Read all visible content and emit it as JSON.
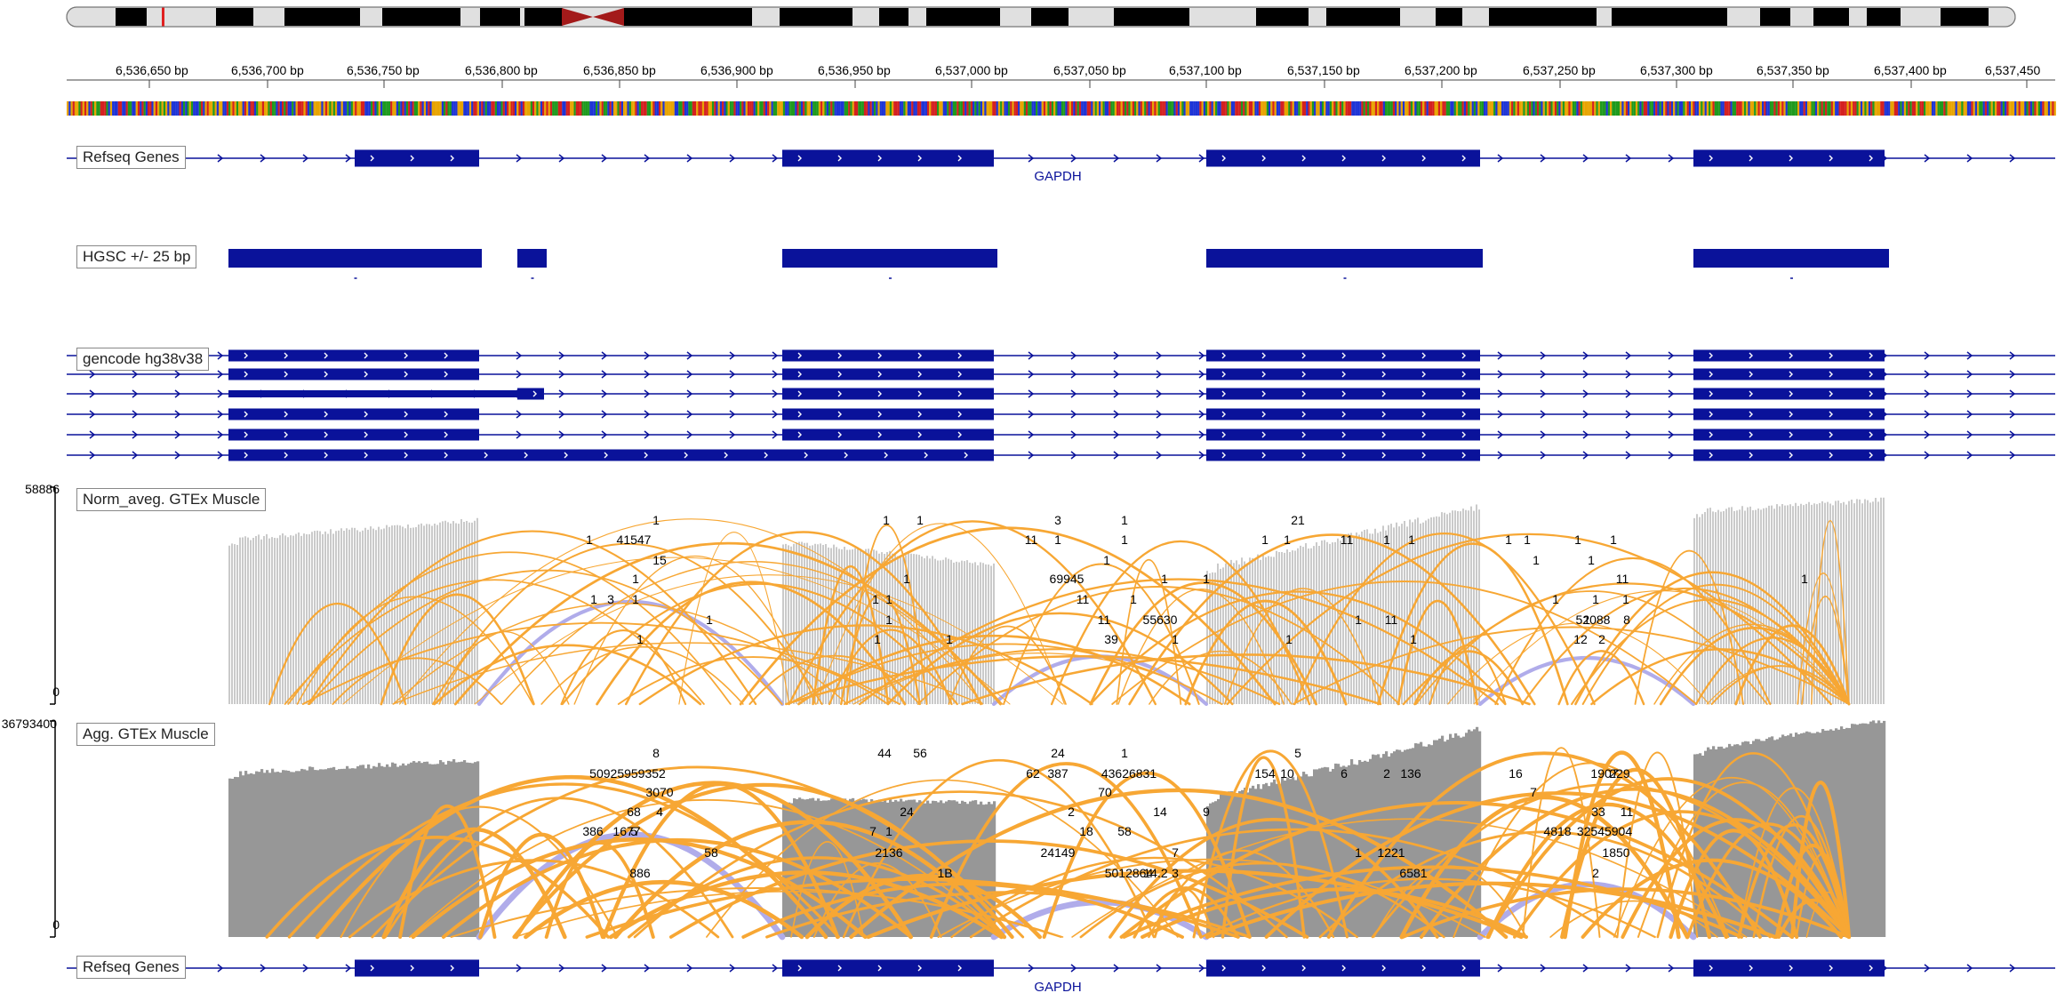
{
  "ruler": {
    "tick_labels": [
      "6,536,650 bp",
      "6,536,700 bp",
      "6,536,750 bp",
      "6,536,800 bp",
      "6,536,850 bp",
      "6,536,900 bp",
      "6,536,950 bp",
      "6,537,000 bp",
      "6,537,050 bp",
      "6,537,100 bp",
      "6,537,150 bp",
      "6,537,200 bp",
      "6,537,250 bp",
      "6,537,300 bp",
      "6,537,350 bp",
      "6,537,400 bp",
      "6,537,450"
    ]
  },
  "tracks": {
    "refseq_top": {
      "label": "Refseq Genes",
      "gene": "GAPDH"
    },
    "hgsc": {
      "label": "HGSC +/- 25 bp"
    },
    "gencode": {
      "label": "gencode hg38v38"
    },
    "norm": {
      "label": "Norm_aveg. GTEx Muscle",
      "scale_max": "58886",
      "scale_min": "0"
    },
    "agg": {
      "label": "Agg. GTEx Muscle",
      "scale_max": "36793400",
      "scale_min": "0"
    },
    "refseq_bottom": {
      "label": "Refseq Genes",
      "gene": "GAPDH"
    }
  },
  "junction_counts": {
    "norm": [
      "1",
      "1",
      "41547",
      "15",
      "1",
      "1",
      "3",
      "1",
      "1",
      "1",
      "1",
      "1",
      "1",
      "1",
      "1",
      "1",
      "1",
      "1",
      "3",
      "1",
      "11",
      "1",
      "1",
      "1",
      "69945",
      "1",
      "11",
      "1",
      "11",
      "39",
      "55630",
      "1",
      "1",
      "21",
      "1",
      "1",
      "11",
      "1",
      "1",
      "1",
      "1",
      "11",
      "1",
      "1",
      "1",
      "1",
      "1",
      "1",
      "11",
      "1",
      "1",
      "1",
      "2",
      "1",
      "1",
      "1",
      "8",
      "52088",
      "12",
      "1"
    ],
    "agg": [
      "8",
      "50925959352",
      "3070",
      "68",
      "4",
      "386",
      "1677",
      "5",
      "886",
      "58",
      "44",
      "56",
      "24",
      "7",
      "1",
      "2136",
      "1B",
      "24",
      "62",
      "387",
      "1",
      "43626831",
      "70",
      "2",
      "18",
      "58",
      "14",
      "24149",
      "7",
      "5012864",
      "14.2",
      "3",
      "9",
      "5",
      "154",
      "10",
      "6",
      "2",
      "136",
      "1",
      "1221",
      "6581",
      "16",
      "7",
      "1907",
      "229",
      "33",
      "11",
      "4818",
      "32545904",
      "1850",
      "2"
    ]
  },
  "colors": {
    "gene_blue": "#0a129a",
    "arc_orange": "#f7a734",
    "arc_lavender": "#b0acea",
    "coverage_light": "#c8c8c8",
    "coverage_dark": "#979797",
    "centromere_red": "#a31a1a"
  }
}
